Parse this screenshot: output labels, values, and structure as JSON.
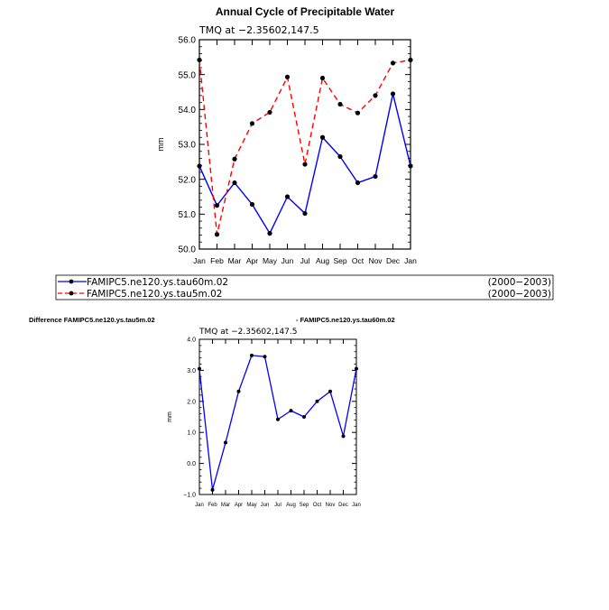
{
  "top": {
    "title": "Annual Cycle of Precipitable Water",
    "subtitle": "TMQ at −2.35602,147.5",
    "ylabel": "mm"
  },
  "legend": {
    "entries": [
      {
        "label": "FAMIPC5.ne120.ys.tau60m.02",
        "period": "(2000−2003)",
        "color": "#0000ff",
        "dash": "solid"
      },
      {
        "label": "FAMIPC5.ne120.ys.tau5m.02",
        "period": "(2000−2003)",
        "color": "#ff0000",
        "dash": "dashed"
      }
    ]
  },
  "bottom": {
    "title_left": "Difference FAMIPC5.ne120.ys.tau5m.02",
    "title_right": "- FAMIPC5.ne120.ys.tau60m.02",
    "subtitle": "TMQ at −2.35602,147.5",
    "ylabel": "mm"
  },
  "chart_data": [
    {
      "type": "line",
      "title": "Annual Cycle of Precipitable Water",
      "subtitle": "TMQ at −2.35602,147.5",
      "ylabel": "mm",
      "categories": [
        "Jan",
        "Feb",
        "Mar",
        "Apr",
        "May",
        "Jun",
        "Jul",
        "Aug",
        "Sep",
        "Oct",
        "Nov",
        "Dec",
        "Jan"
      ],
      "ylim": [
        50.0,
        56.0
      ],
      "yticks": [
        "50.0",
        "51.0",
        "52.0",
        "53.0",
        "54.0",
        "55.0",
        "56.0"
      ],
      "series": [
        {
          "name": "FAMIPC5.ne120.ys.tau60m.02",
          "color": "#0000ff",
          "dash": "solid",
          "values": [
            52.38,
            51.25,
            51.9,
            51.28,
            50.45,
            51.5,
            51.02,
            53.2,
            52.65,
            51.9,
            52.08,
            54.45,
            52.38
          ]
        },
        {
          "name": "FAMIPC5.ne120.ys.tau5m.02",
          "color": "#ff0000",
          "dash": "dashed",
          "values": [
            55.42,
            50.42,
            52.58,
            53.6,
            53.92,
            54.93,
            52.43,
            54.9,
            54.15,
            53.9,
            54.4,
            55.33,
            55.42
          ]
        }
      ]
    },
    {
      "type": "line",
      "title": "Difference FAMIPC5.ne120.ys.tau5m.02 - FAMIPC5.ne120.ys.tau60m.02",
      "subtitle": "TMQ at −2.35602,147.5",
      "ylabel": "mm",
      "categories": [
        "Jan",
        "Feb",
        "Mar",
        "Apr",
        "May",
        "Jun",
        "Jul",
        "Aug",
        "Sep",
        "Oct",
        "Nov",
        "Dec",
        "Jan"
      ],
      "ylim": [
        -1.0,
        4.0
      ],
      "yticks": [
        "−1.0",
        "0.0",
        "1.0",
        "2.0",
        "3.0",
        "4.0"
      ],
      "series": [
        {
          "name": "difference",
          "color": "#0000ff",
          "dash": "solid",
          "values": [
            3.05,
            -0.85,
            0.67,
            2.32,
            3.48,
            3.44,
            1.42,
            1.7,
            1.5,
            2.0,
            2.32,
            0.88,
            3.05
          ]
        }
      ]
    }
  ]
}
